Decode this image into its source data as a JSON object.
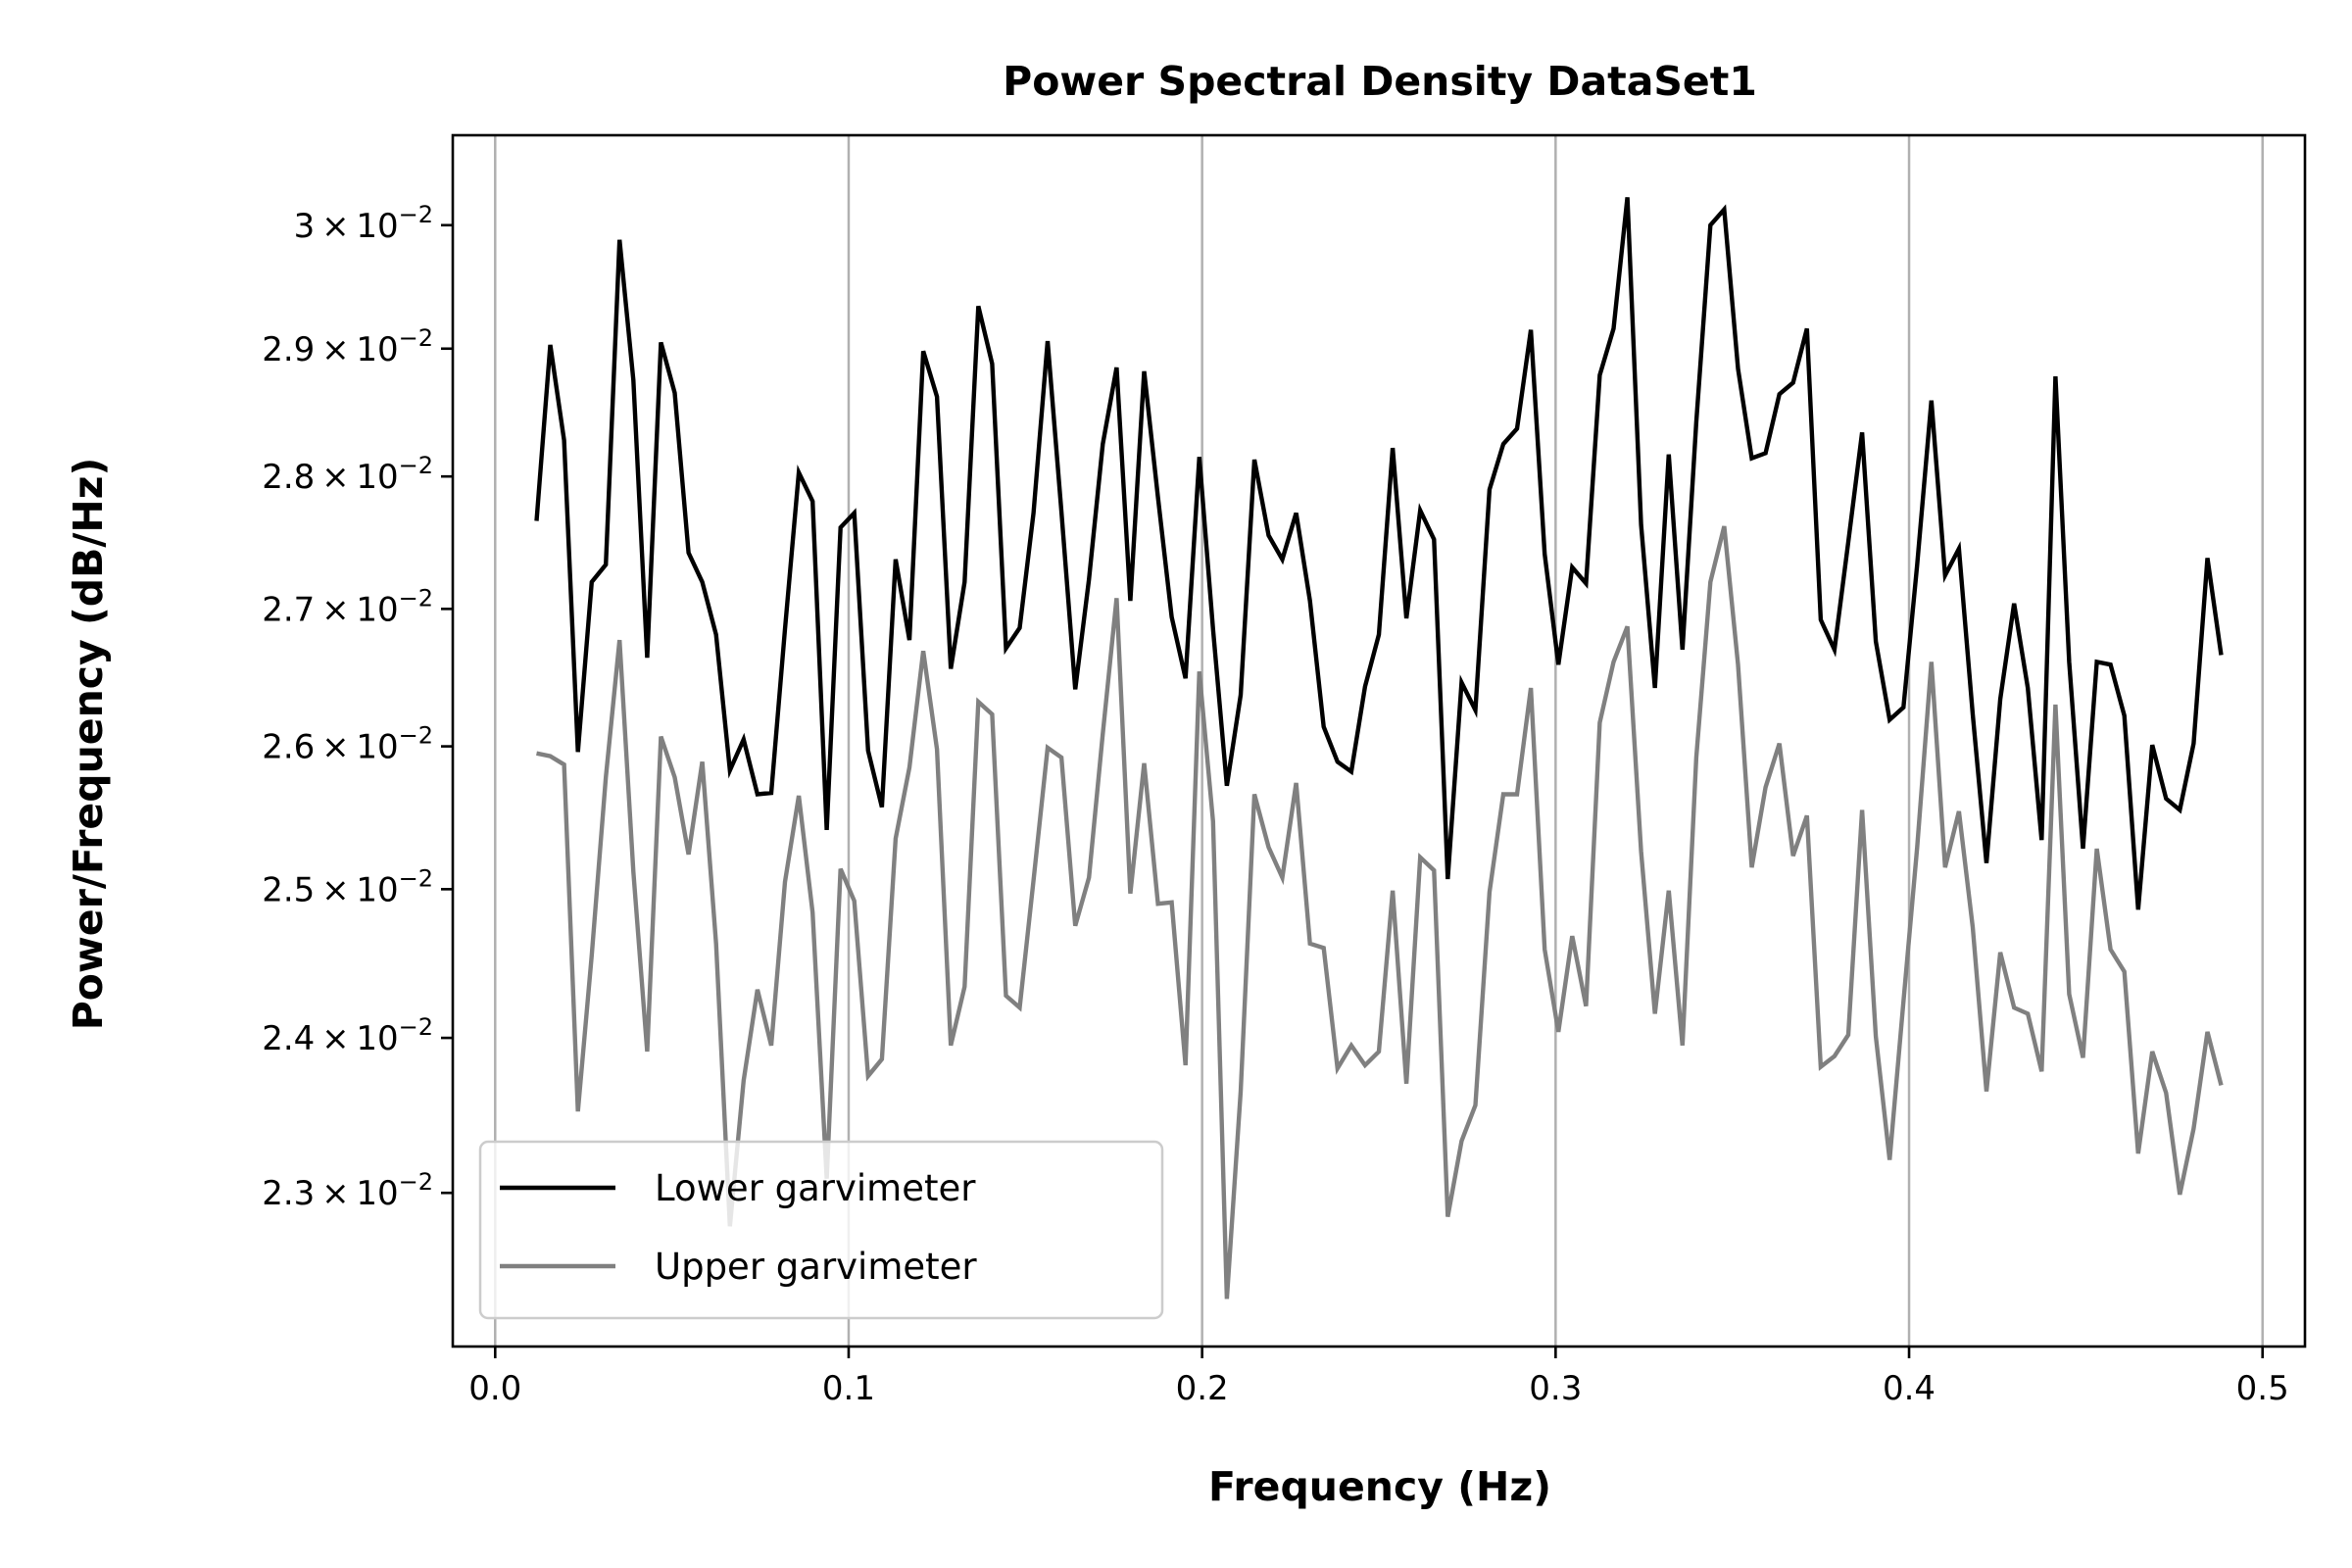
{
  "chart_data": {
    "type": "line",
    "title": "Power Spectral Density DataSet1",
    "xlabel": "Frequency (Hz)",
    "ylabel": "Power/Frequency (dB/Hz)",
    "yscale": "log",
    "xlim": [
      -0.012,
      0.512
    ],
    "ylim": [
      0.02205,
      0.03075
    ],
    "grid": "vertical",
    "legend_position": "lower-left",
    "x_ticks": [
      0.0,
      0.1,
      0.2,
      0.3,
      0.4,
      0.5
    ],
    "x_tick_labels": [
      "0.0",
      "0.1",
      "0.2",
      "0.3",
      "0.4",
      "0.5"
    ],
    "y_ticks": [
      0.023,
      0.024,
      0.025,
      0.026,
      0.027,
      0.028,
      0.029,
      0.03
    ],
    "y_tick_labels": [
      {
        "mantissa": "2.3",
        "base": "10",
        "exp": "−2"
      },
      {
        "mantissa": "2.4",
        "base": "10",
        "exp": "−2"
      },
      {
        "mantissa": "2.5",
        "base": "10",
        "exp": "−2"
      },
      {
        "mantissa": "2.6",
        "base": "10",
        "exp": "−2"
      },
      {
        "mantissa": "2.7",
        "base": "10",
        "exp": "−2"
      },
      {
        "mantissa": "2.8",
        "base": "10",
        "exp": "−2"
      },
      {
        "mantissa": "2.9",
        "base": "10",
        "exp": "−2"
      },
      {
        "mantissa": "3",
        "base": "10",
        "exp": "−2"
      }
    ],
    "x": [
      0.0117,
      0.0156,
      0.0195,
      0.0234,
      0.0273,
      0.0313,
      0.0352,
      0.0391,
      0.043,
      0.0469,
      0.0508,
      0.0547,
      0.0586,
      0.0625,
      0.0664,
      0.0703,
      0.0742,
      0.0781,
      0.082,
      0.0859,
      0.0898,
      0.0938,
      0.0977,
      0.1016,
      0.1055,
      0.1094,
      0.1133,
      0.1172,
      0.1211,
      0.125,
      0.1289,
      0.1328,
      0.1367,
      0.1406,
      0.1445,
      0.1484,
      0.1523,
      0.1563,
      0.1602,
      0.1641,
      0.168,
      0.1719,
      0.1758,
      0.1797,
      0.1836,
      0.1875,
      0.1914,
      0.1953,
      0.1992,
      0.2031,
      0.207,
      0.2109,
      0.2148,
      0.2188,
      0.2227,
      0.2266,
      0.2305,
      0.2344,
      0.2383,
      0.2422,
      0.2461,
      0.25,
      0.2539,
      0.2578,
      0.2617,
      0.2656,
      0.2695,
      0.2734,
      0.2773,
      0.2813,
      0.2852,
      0.2891,
      0.293,
      0.2969,
      0.3008,
      0.3047,
      0.3086,
      0.3125,
      0.3164,
      0.3203,
      0.3242,
      0.3281,
      0.332,
      0.3359,
      0.3398,
      0.3438,
      0.3477,
      0.3516,
      0.3555,
      0.3594,
      0.3633,
      0.3672,
      0.3711,
      0.375,
      0.3789,
      0.3828,
      0.3867,
      0.3906,
      0.3945,
      0.3984,
      0.4023,
      0.4063,
      0.4102,
      0.4141,
      0.418,
      0.4219,
      0.4258,
      0.4297,
      0.4336,
      0.4375,
      0.4414,
      0.4453,
      0.4492,
      0.4531,
      0.457,
      0.4609,
      0.4648,
      0.4688,
      0.4727,
      0.4766,
      0.4805,
      0.4844,
      0.4883
    ],
    "series": [
      {
        "name": "Lower garvimeter",
        "color": "#000000",
        "values": [
          0.02766,
          0.02903,
          0.02828,
          0.02596,
          0.0272,
          0.02733,
          0.02988,
          0.02875,
          0.02664,
          0.02905,
          0.02865,
          0.02742,
          0.0272,
          0.02681,
          0.02583,
          0.02605,
          0.02566,
          0.02567,
          0.02685,
          0.02803,
          0.02781,
          0.02541,
          0.02761,
          0.02772,
          0.02597,
          0.02557,
          0.02737,
          0.02677,
          0.02898,
          0.02862,
          0.02656,
          0.0272,
          0.02934,
          0.02888,
          0.02671,
          0.02686,
          0.02772,
          0.02906,
          0.02773,
          0.02641,
          0.02722,
          0.02825,
          0.02885,
          0.02706,
          0.02882,
          0.02784,
          0.02694,
          0.02649,
          0.02815,
          0.02685,
          0.02572,
          0.02637,
          0.02813,
          0.02755,
          0.02737,
          0.02772,
          0.02706,
          0.02614,
          0.02589,
          0.02582,
          0.02643,
          0.02681,
          0.02822,
          0.02693,
          0.02774,
          0.02752,
          0.02507,
          0.02646,
          0.02626,
          0.0279,
          0.02825,
          0.02837,
          0.02915,
          0.02741,
          0.02659,
          0.02731,
          0.02719,
          0.02879,
          0.02916,
          0.03023,
          0.02763,
          0.02642,
          0.02817,
          0.0267,
          0.02842,
          0.03,
          0.03013,
          0.02884,
          0.02814,
          0.02818,
          0.02864,
          0.02873,
          0.02916,
          0.02692,
          0.0267,
          0.0275,
          0.02834,
          0.02676,
          0.02619,
          0.02628,
          0.02733,
          0.02859,
          0.02725,
          0.02745,
          0.02623,
          0.02518,
          0.02634,
          0.02704,
          0.02642,
          0.02534,
          0.02878,
          0.02661,
          0.02528,
          0.02661,
          0.02659,
          0.02622,
          0.02486,
          0.02601,
          0.02563,
          0.02555,
          0.02602,
          0.02738,
          0.02666
        ]
      },
      {
        "name": "Upper garvimeter",
        "color": "#808080",
        "values": [
          0.02595,
          0.02593,
          0.02587,
          0.02352,
          0.02455,
          0.02578,
          0.02677,
          0.02512,
          0.02391,
          0.02607,
          0.02578,
          0.02524,
          0.02589,
          0.02463,
          0.02279,
          0.02372,
          0.02432,
          0.02395,
          0.02505,
          0.02565,
          0.02484,
          0.02309,
          0.02514,
          0.02492,
          0.02375,
          0.02386,
          0.02535,
          0.02585,
          0.02669,
          0.02598,
          0.02395,
          0.02434,
          0.02632,
          0.02623,
          0.02428,
          0.0242,
          0.02506,
          0.02599,
          0.02592,
          0.02475,
          0.02508,
          0.02609,
          0.02708,
          0.02497,
          0.02588,
          0.0249,
          0.02491,
          0.02382,
          0.02654,
          0.02547,
          0.02234,
          0.02365,
          0.02566,
          0.02529,
          0.02508,
          0.02574,
          0.02463,
          0.0246,
          0.0238,
          0.02395,
          0.02382,
          0.02391,
          0.02499,
          0.0237,
          0.02522,
          0.02513,
          0.02285,
          0.02333,
          0.02356,
          0.02498,
          0.02566,
          0.02566,
          0.02642,
          0.02459,
          0.02404,
          0.02468,
          0.02421,
          0.02617,
          0.02661,
          0.02687,
          0.02526,
          0.02416,
          0.02499,
          0.02395,
          0.02592,
          0.0272,
          0.02762,
          0.02659,
          0.02515,
          0.02571,
          0.02602,
          0.02523,
          0.02551,
          0.02381,
          0.02388,
          0.02402,
          0.02555,
          0.02401,
          0.02321,
          0.02424,
          0.02529,
          0.02661,
          0.02515,
          0.02554,
          0.02474,
          0.02365,
          0.02457,
          0.0242,
          0.02416,
          0.02378,
          0.0263,
          0.02429,
          0.02387,
          0.02528,
          0.02459,
          0.02444,
          0.02325,
          0.02391,
          0.02364,
          0.02299,
          0.02341,
          0.02404,
          0.02369
        ]
      }
    ]
  }
}
